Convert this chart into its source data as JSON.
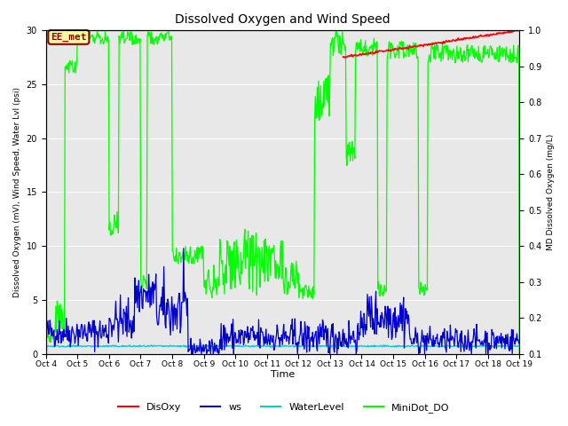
{
  "title": "Dissolved Oxygen and Wind Speed",
  "xlabel": "Time",
  "ylabel_left": "Dissolved Oxygen (mV), Wind Speed, Water Lvl (psi)",
  "ylabel_right": "MD Dissolved Oxygen (mg/L)",
  "ylim_left": [
    0,
    30
  ],
  "ylim_right": [
    0.1,
    1.0
  ],
  "yticks_left": [
    0,
    5,
    10,
    15,
    20,
    25,
    30
  ],
  "yticks_right": [
    0.1,
    0.2,
    0.3,
    0.4,
    0.5,
    0.6,
    0.7,
    0.8,
    0.9,
    1.0
  ],
  "xtick_labels": [
    "Oct 4",
    "Oct 5",
    "Oct 6",
    "Oct 7",
    "Oct 8",
    "Oct 9",
    "Oct 10",
    "Oct 11",
    "Oct 12",
    "Oct 13",
    "Oct 14",
    "Oct 15",
    "Oct 16",
    "Oct 17",
    "Oct 18",
    "Oct 19"
  ],
  "plot_bg_color": "#e8e8e8",
  "fig_bg_color": "#ffffff",
  "annotation_label": "EE_met",
  "annotation_color": "#8b0000",
  "annotation_bg": "#ffffa0",
  "line_colors": {
    "DisOxy": "#ff0000",
    "ws": "#0000cd",
    "WaterLevel": "#00ccdd",
    "MiniDot_DO": "#00ff00"
  },
  "legend_labels": [
    "DisOxy",
    "ws",
    "WaterLevel",
    "MiniDot_DO"
  ],
  "grid_color": "#ffffff",
  "title_fontsize": 10,
  "axis_fontsize": 7,
  "legend_fontsize": 8
}
